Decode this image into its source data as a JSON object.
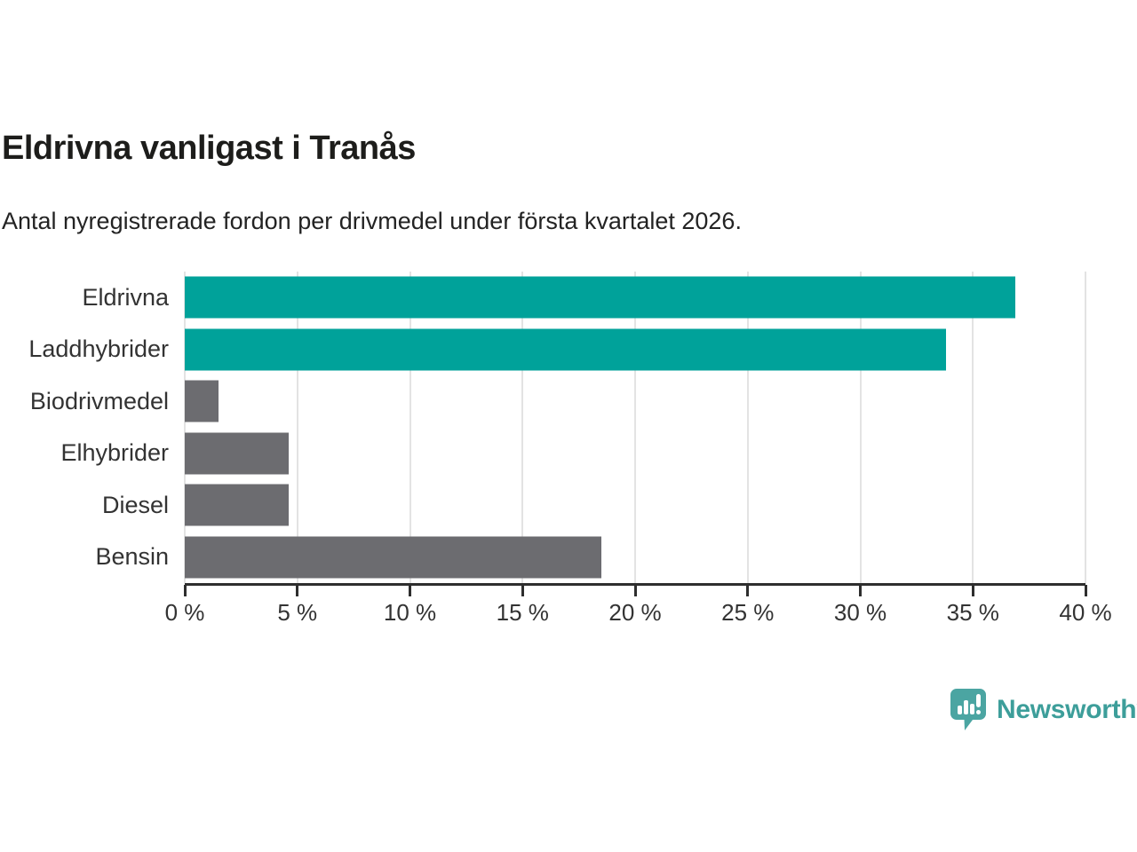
{
  "header": {
    "title": "Eldrivna vanligast i Tranås",
    "subtitle": "Antal nyregistrerade fordon per drivmedel under första kvartalet 2026."
  },
  "chart_data": {
    "type": "bar",
    "orientation": "horizontal",
    "title": "Eldrivna vanligast i Tranås",
    "categories": [
      "Eldrivna",
      "Laddhybrider",
      "Biodrivmedel",
      "Elhybrider",
      "Diesel",
      "Bensin"
    ],
    "values": [
      36.9,
      33.8,
      1.5,
      4.6,
      4.6,
      18.5
    ],
    "unit": "%",
    "xlim": [
      0,
      40
    ],
    "x_ticks": [
      0,
      5,
      10,
      15,
      20,
      25,
      30,
      35,
      40
    ],
    "x_tick_labels": [
      "0 %",
      "5 %",
      "10 %",
      "15 %",
      "20 %",
      "25 %",
      "30 %",
      "35 %",
      "40 %"
    ],
    "grid": true,
    "legend": "none",
    "bar_colors": [
      "#00a29a",
      "#00a29a",
      "#6c6c70",
      "#6c6c70",
      "#6c6c70",
      "#6c6c70"
    ]
  },
  "colors": {
    "highlight_teal": "#00a29a",
    "neutral_gray": "#6c6c70",
    "gridline": "#e3e3e3",
    "axis": "#2e2e2e",
    "title_text": "#1d1d1b",
    "brand_teal": "#3d9e9a",
    "logo_icon_teal": "#4ba5a2"
  },
  "footer": {
    "brand": "Newsworthy",
    "logo_icon": "bar-chart-speech-bubble-icon"
  }
}
